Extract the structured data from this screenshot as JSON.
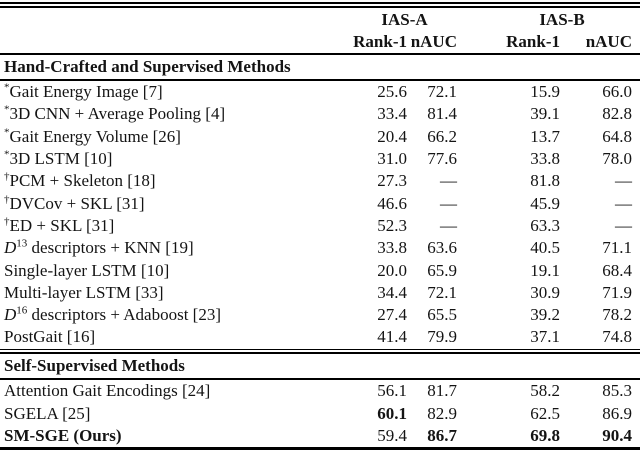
{
  "page": {
    "background": "#ffffff",
    "text_color": "#141414",
    "rule_color": "#000000"
  },
  "table": {
    "group_headers": [
      {
        "label": "IAS-A"
      },
      {
        "label": "IAS-B"
      }
    ],
    "column_headers": [
      "Rank-1",
      "nAUC",
      "Rank-1",
      "nAUC"
    ],
    "dash": "—",
    "sections": [
      {
        "title": "Hand-Crafted and Supervised Methods",
        "rows": [
          {
            "name_parts": [
              {
                "text": "*",
                "style": "sup"
              },
              {
                "text": "Gait Energy Image [7]",
                "style": "normal"
              }
            ],
            "values": [
              "25.6",
              "72.1",
              "15.9",
              "66.0"
            ],
            "bold_values": [
              false,
              false,
              false,
              false
            ],
            "bold_name": false
          },
          {
            "name_parts": [
              {
                "text": "*",
                "style": "sup"
              },
              {
                "text": "3D CNN + Average Pooling [4]",
                "style": "normal"
              }
            ],
            "values": [
              "33.4",
              "81.4",
              "39.1",
              "82.8"
            ],
            "bold_values": [
              false,
              false,
              false,
              false
            ],
            "bold_name": false
          },
          {
            "name_parts": [
              {
                "text": "*",
                "style": "sup"
              },
              {
                "text": "Gait Energy Volume [26]",
                "style": "normal"
              }
            ],
            "values": [
              "20.4",
              "66.2",
              "13.7",
              "64.8"
            ],
            "bold_values": [
              false,
              false,
              false,
              false
            ],
            "bold_name": false
          },
          {
            "name_parts": [
              {
                "text": "*",
                "style": "sup"
              },
              {
                "text": "3D LSTM [10]",
                "style": "normal"
              }
            ],
            "values": [
              "31.0",
              "77.6",
              "33.8",
              "78.0"
            ],
            "bold_values": [
              false,
              false,
              false,
              false
            ],
            "bold_name": false
          },
          {
            "name_parts": [
              {
                "text": "†",
                "style": "sup"
              },
              {
                "text": "PCM + Skeleton [18]",
                "style": "normal"
              }
            ],
            "values": [
              "27.3",
              "—",
              "81.8",
              "—"
            ],
            "bold_values": [
              false,
              false,
              false,
              false
            ],
            "bold_name": false
          },
          {
            "name_parts": [
              {
                "text": "†",
                "style": "sup"
              },
              {
                "text": "DVCov + SKL [31]",
                "style": "normal"
              }
            ],
            "values": [
              "46.6",
              "—",
              "45.9",
              "—"
            ],
            "bold_values": [
              false,
              false,
              false,
              false
            ],
            "bold_name": false
          },
          {
            "name_parts": [
              {
                "text": "†",
                "style": "sup"
              },
              {
                "text": "ED + SKL [31]",
                "style": "normal"
              }
            ],
            "values": [
              "52.3",
              "—",
              "63.3",
              "—"
            ],
            "bold_values": [
              false,
              false,
              false,
              false
            ],
            "bold_name": false
          },
          {
            "name_parts": [
              {
                "text": "D",
                "style": "italic"
              },
              {
                "text": "13",
                "style": "sup"
              },
              {
                "text": " descriptors + KNN [19]",
                "style": "normal"
              }
            ],
            "values": [
              "33.8",
              "63.6",
              "40.5",
              "71.1"
            ],
            "bold_values": [
              false,
              false,
              false,
              false
            ],
            "bold_name": false
          },
          {
            "name_parts": [
              {
                "text": "Single-layer LSTM [10]",
                "style": "normal"
              }
            ],
            "values": [
              "20.0",
              "65.9",
              "19.1",
              "68.4"
            ],
            "bold_values": [
              false,
              false,
              false,
              false
            ],
            "bold_name": false
          },
          {
            "name_parts": [
              {
                "text": "Multi-layer LSTM [33]",
                "style": "normal"
              }
            ],
            "values": [
              "34.4",
              "72.1",
              "30.9",
              "71.9"
            ],
            "bold_values": [
              false,
              false,
              false,
              false
            ],
            "bold_name": false
          },
          {
            "name_parts": [
              {
                "text": "D",
                "style": "italic"
              },
              {
                "text": "16",
                "style": "sup"
              },
              {
                "text": " descriptors + Adaboost [23]",
                "style": "normal"
              }
            ],
            "values": [
              "27.4",
              "65.5",
              "39.2",
              "78.2"
            ],
            "bold_values": [
              false,
              false,
              false,
              false
            ],
            "bold_name": false
          },
          {
            "name_parts": [
              {
                "text": "PostGait [16]",
                "style": "normal"
              }
            ],
            "values": [
              "41.4",
              "79.9",
              "37.1",
              "74.8"
            ],
            "bold_values": [
              false,
              false,
              false,
              false
            ],
            "bold_name": false
          }
        ]
      },
      {
        "title": "Self-Supervised Methods",
        "rows": [
          {
            "name_parts": [
              {
                "text": "Attention Gait Encodings [24]",
                "style": "normal"
              }
            ],
            "values": [
              "56.1",
              "81.7",
              "58.2",
              "85.3"
            ],
            "bold_values": [
              false,
              false,
              false,
              false
            ],
            "bold_name": false
          },
          {
            "name_parts": [
              {
                "text": "SGELA [25]",
                "style": "normal"
              }
            ],
            "values": [
              "60.1",
              "82.9",
              "62.5",
              "86.9"
            ],
            "bold_values": [
              true,
              false,
              false,
              false
            ],
            "bold_name": false
          },
          {
            "name_parts": [
              {
                "text": "SM-SGE (Ours)",
                "style": "normal"
              }
            ],
            "values": [
              "59.4",
              "86.7",
              "69.8",
              "90.4"
            ],
            "bold_values": [
              false,
              true,
              true,
              true
            ],
            "bold_name": true
          }
        ]
      }
    ]
  }
}
